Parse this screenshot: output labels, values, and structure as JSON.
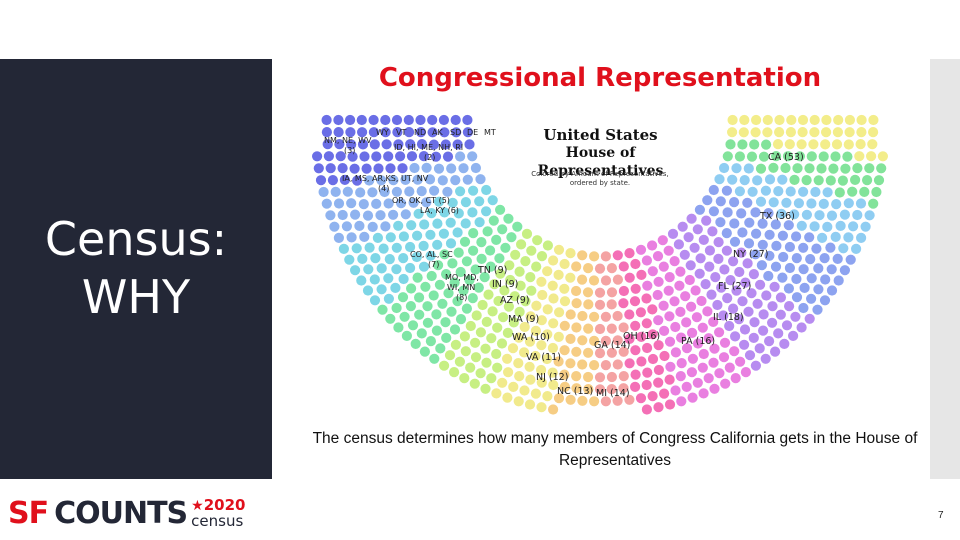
{
  "slide": {
    "title": "Congressional Representation",
    "section_title_line1": "Census:",
    "section_title_line2": "WHY",
    "caption": "The census determines how many members of Congress California gets in the House of Representatives",
    "page_number": "7"
  },
  "infographic": {
    "header_line1": "United States",
    "header_line2": "House of Representatives",
    "subtitle_line1": "Colored by Amount of Representatives,",
    "subtitle_line2": "ordered by state.",
    "labels": {
      "wy": "WY",
      "vt": "VT",
      "nd": "ND",
      "ak": "AK",
      "sd": "SD",
      "de": "DE",
      "mt": "MT",
      "nm_ne_wv": "NM, NE, WV",
      "nm_ne_wv_count": "(3)",
      "id_hi": "ID, HI, ME, NH, RI",
      "id_hi_count": "(2)",
      "ia_ms": "IA, MS, AR,KS, UT, NV",
      "ia_ms_count": "(4)",
      "or_ok": "OR, OK, CT (5)",
      "la_ky": "LA, KY (6)",
      "co_al": "CO, AL, SC",
      "co_al_count": "(7)",
      "md_wi": "MO, MD,",
      "md_wi2": "WI, MN",
      "md_wi_count": "(8)",
      "tn": "TN (9)",
      "in": "IN (9)",
      "az": "AZ (9)",
      "ma": "MA (9)",
      "wa": "WA (10)",
      "va": "VA (11)",
      "nj": "NJ (12)",
      "nc": "NC (13)",
      "mi": "MI (14)",
      "ga": "GA (14)",
      "oh": "OH (16)",
      "pa": "PA (16)",
      "il": "IL (18)",
      "fl": "FL (27)",
      "ny": "NY (27)",
      "tx": "TX (36)",
      "ca": "CA (53)"
    }
  },
  "logo": {
    "sf": "SF",
    "counts": "COUNTS",
    "star": "★",
    "year": "2020",
    "census": "census"
  },
  "colors": {
    "accent": "#e0101c",
    "dark_panel": "#232736"
  }
}
